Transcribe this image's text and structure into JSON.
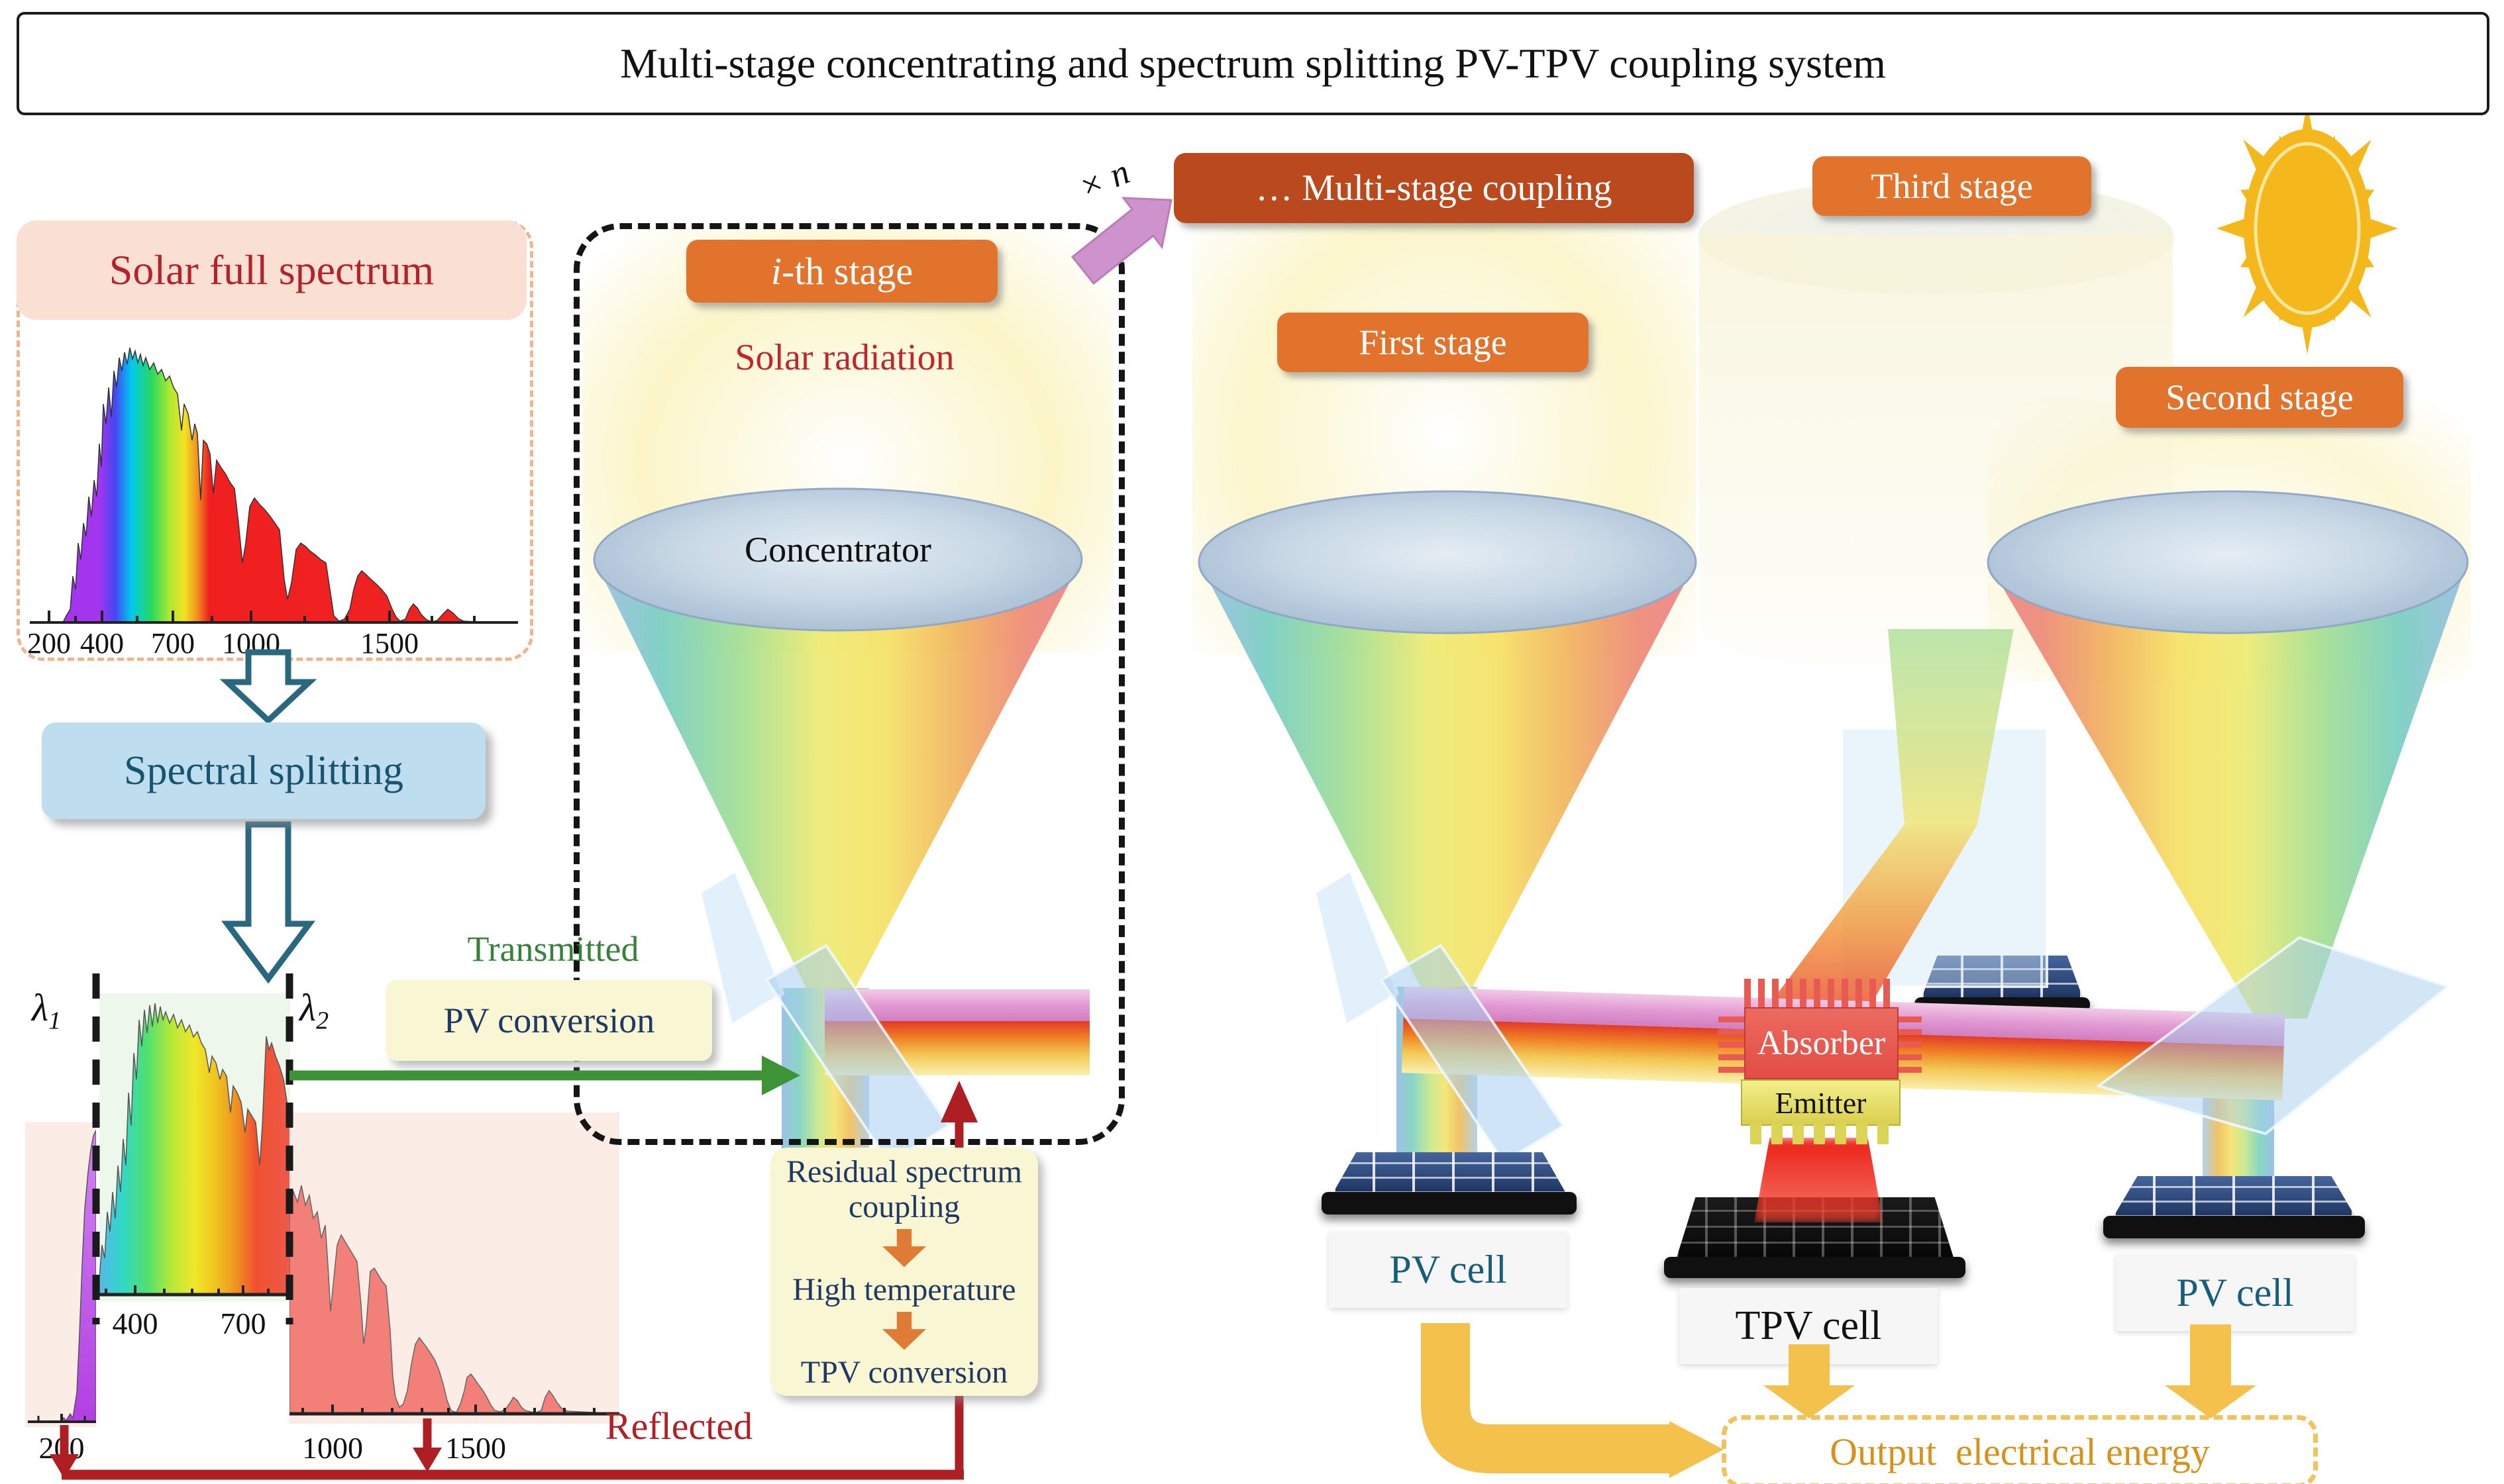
{
  "title": "Multi-stage concentrating and spectrum splitting PV-TPV coupling system",
  "solar_full_spectrum": {
    "label": "Solar full spectrum",
    "ticks": [
      "200",
      "400",
      "700",
      "1000",
      "1500"
    ]
  },
  "spectral_splitting": "Spectral splitting",
  "split_spectrum": {
    "lambda1_base": "λ",
    "lambda1_sub": "1",
    "lambda2_base": "λ",
    "lambda2_sub": "2",
    "uv_tick": "200",
    "vis_ticks": [
      "400",
      "700"
    ],
    "ir_ticks": [
      "1000",
      "1500"
    ]
  },
  "ith_stage": {
    "prefix": "i",
    "suffix": "-th stage",
    "solar_radiation": "Solar radiation",
    "concentrator": "Concentrator",
    "transmitted": "Transmitted",
    "pv_conversion": "PV conversion",
    "residual_line1": "Residual spectrum",
    "residual_line2": "coupling",
    "high_temperature": "High temperature",
    "tpv_conversion": "TPV conversion",
    "reflected": "Reflected"
  },
  "coupling": {
    "times_n": "× n",
    "multi_stage": "… Multi-stage coupling"
  },
  "stages": {
    "first": "First stage",
    "second": "Second stage",
    "third": "Third stage"
  },
  "components": {
    "absorber": "Absorber",
    "emitter": "Emitter",
    "pv_cell_left": "PV cell",
    "tpv_cell": "TPV cell",
    "pv_cell_right": "PV cell"
  },
  "output": {
    "label": "Output  electrical energy"
  },
  "colors": {
    "stage_orange": "#E2732D",
    "coupling_brown": "#BA4A1E",
    "gold_arrow": "#F4C14D",
    "output_text": "#D8921C",
    "red_line": "#AE1F24",
    "green_arrow": "#3C9437",
    "navy_text": "#1F3864",
    "teal_text": "#175E7C",
    "crimson_text": "#C4242B",
    "light_blue_box": "#BEDDEF",
    "sun_gold": "#F4B81C"
  }
}
